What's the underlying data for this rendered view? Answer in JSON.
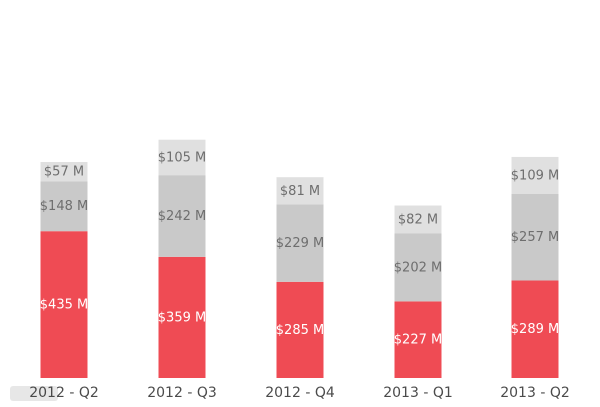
{
  "chart_data": {
    "type": "bar",
    "stacked": true,
    "categories": [
      "2012 - Q2",
      "2012 - Q3",
      "2012 - Q4",
      "2013 - Q1",
      "2013 - Q2"
    ],
    "series": [
      {
        "values": [
          435,
          359,
          285,
          227,
          289
        ],
        "labels": [
          "$435 M",
          "$359 M",
          "$285 M",
          "$227 M",
          "$289 M"
        ],
        "color": "#ef4b54",
        "label_color": "#ffffff"
      },
      {
        "values": [
          148,
          242,
          229,
          202,
          257
        ],
        "labels": [
          "$148 M",
          "$242 M",
          "$229 M",
          "$202 M",
          "$257 M"
        ],
        "color": "#c9c9c9",
        "label_color": "#6e6e6e"
      },
      {
        "values": [
          57,
          105,
          81,
          82,
          109
        ],
        "labels": [
          "$57 M",
          "$105 M",
          "$81 M",
          "$82 M",
          "$109 M"
        ],
        "color": "#e0e0e0",
        "label_color": "#6e6e6e"
      }
    ],
    "ylim": [
      0,
      680
    ],
    "grid": false,
    "legend": false
  }
}
